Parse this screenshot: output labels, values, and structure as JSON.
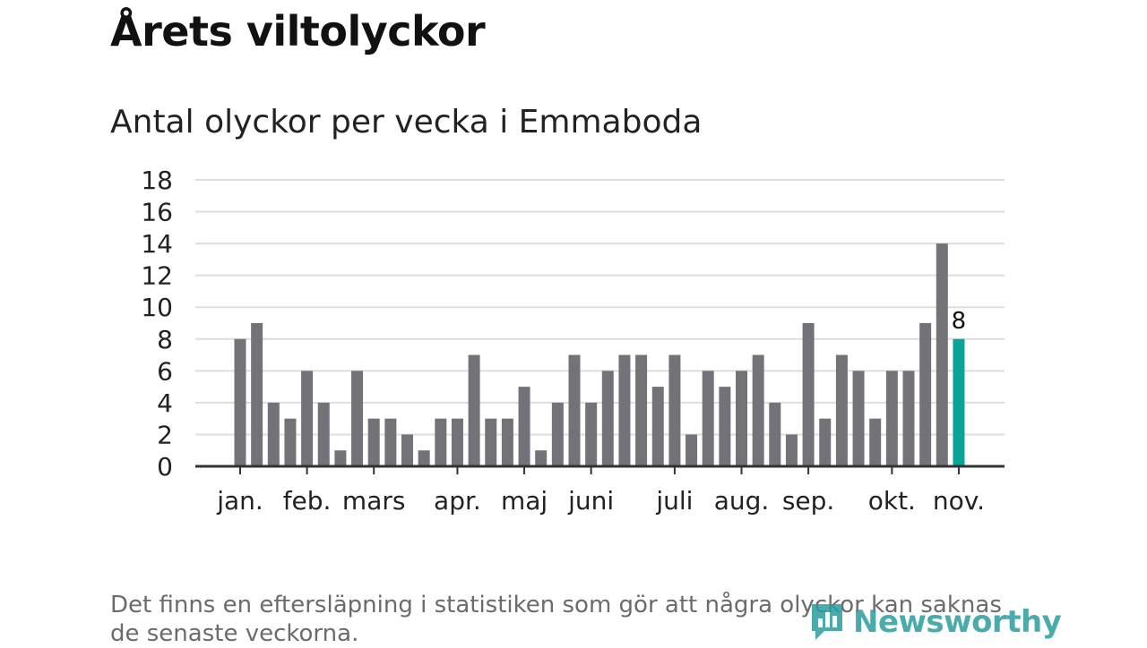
{
  "header": {
    "title": "Årets viltolyckor",
    "subtitle": "Antal olyckor per vecka i Emmaboda"
  },
  "footer": {
    "note": "Det finns en eftersläpning i statistiken som gör att några olyckor kan saknas de senaste veckorna.",
    "brand": "Newsworthy"
  },
  "colors": {
    "bar": "#737279",
    "highlight": "#0aa398",
    "grid": "#dddddd",
    "axis": "#333333",
    "brand": "#2a9d9d"
  },
  "chart_data": {
    "type": "bar",
    "title": "Antal olyckor per vecka i Emmaboda",
    "xlabel": "",
    "ylabel": "",
    "ylim": [
      0,
      18
    ],
    "yticks": [
      0,
      2,
      4,
      6,
      8,
      10,
      12,
      14,
      16,
      18
    ],
    "grid": true,
    "values": [
      8,
      9,
      4,
      3,
      6,
      4,
      1,
      6,
      3,
      3,
      2,
      1,
      3,
      3,
      7,
      3,
      3,
      5,
      1,
      4,
      7,
      4,
      6,
      7,
      7,
      5,
      7,
      2,
      6,
      5,
      6,
      7,
      4,
      2,
      9,
      3,
      7,
      6,
      3,
      6,
      6,
      9,
      14,
      8
    ],
    "highlight_index": 43,
    "highlight_label": "8",
    "month_labels": [
      {
        "label": "jan.",
        "week_index": 0
      },
      {
        "label": "feb.",
        "week_index": 4
      },
      {
        "label": "mars",
        "week_index": 8
      },
      {
        "label": "apr.",
        "week_index": 13
      },
      {
        "label": "maj",
        "week_index": 17
      },
      {
        "label": "juni",
        "week_index": 21
      },
      {
        "label": "juli",
        "week_index": 26
      },
      {
        "label": "aug.",
        "week_index": 30
      },
      {
        "label": "sep.",
        "week_index": 34
      },
      {
        "label": "okt.",
        "week_index": 39
      },
      {
        "label": "nov.",
        "week_index": 43
      }
    ]
  }
}
